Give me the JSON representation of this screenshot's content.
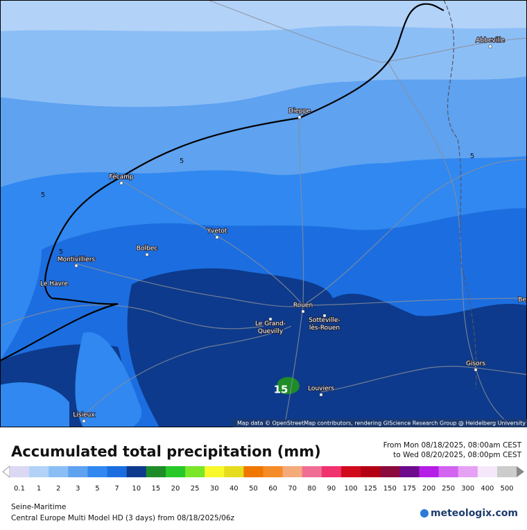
{
  "map": {
    "places": [
      {
        "label": "Abbeville"
      },
      {
        "label": "Dieppe"
      },
      {
        "label": "Fécamp"
      },
      {
        "label": "Yvetot"
      },
      {
        "label": "Bolbec"
      },
      {
        "label": "Montivilliers"
      },
      {
        "label": "Le Havre"
      },
      {
        "label": "Rouen"
      },
      {
        "label": "Le Grand-\nQuevilly"
      },
      {
        "label": "Sotteville-\nlès-Rouen"
      },
      {
        "label": "Louviers"
      },
      {
        "label": "Gisors"
      },
      {
        "label": "Lisieux"
      },
      {
        "label": "Be"
      }
    ],
    "contour_labels": [
      "5",
      "5",
      "5",
      "5",
      "15"
    ],
    "attribution": "Map data © OpenStreetMap contributors, rendering GIScience Research Group @ Heidelberg University"
  },
  "header": {
    "title": "Accumulated total precipitation (mm)",
    "from": "From Mon 08/18/2025, 08:00am CEST",
    "to": "to Wed 08/20/2025, 08:00pm CEST"
  },
  "legend": {
    "labels": [
      0.1,
      1,
      2,
      3,
      5,
      7,
      10,
      15,
      20,
      25,
      30,
      40,
      50,
      60,
      70,
      80,
      90,
      100,
      125,
      150,
      175,
      200,
      250,
      300,
      400,
      500
    ],
    "colors": [
      "#dad8f2",
      "#b2d2f8",
      "#8cbef6",
      "#5ea2f0",
      "#3088f0",
      "#1c6ee0",
      "#0d3a8c",
      "#1e8c28",
      "#28c828",
      "#7ae62a",
      "#f8f82a",
      "#e6dc1e",
      "#f07800",
      "#f58c28",
      "#f5aa7a",
      "#f06e96",
      "#f0326e",
      "#d20a1e",
      "#b40014",
      "#8c0a3c",
      "#6e0a8c",
      "#b41ee6",
      "#d264f0",
      "#e6a0f5",
      "#f5e8fa",
      "#cccccc"
    ]
  },
  "footer": {
    "region": "Seine-Maritime",
    "model": "Central Europe Multi Model HD (3 days) from  08/18/2025/06z",
    "brand": "meteologix.com"
  }
}
